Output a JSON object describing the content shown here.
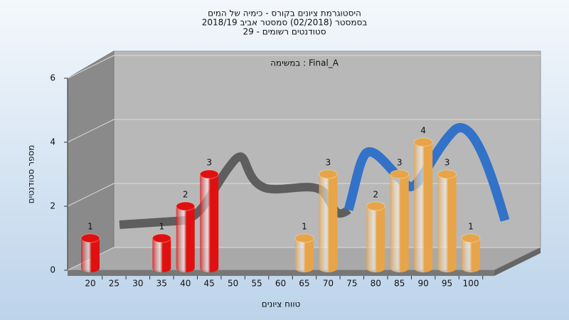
{
  "chart_data": {
    "type": "bar",
    "title": [
      "היסטוגרמת ציונים בקורס - כימיה של המים",
      "בסמסטר  (02/2018)  סמסטר אביב 2018/19",
      "סטודנטים רשומים - 29"
    ],
    "annotation": "במשימה : Final_A",
    "xlabel": "טווח ציונים",
    "ylabel": "מספר סטודנטים",
    "categories": [
      "20",
      "25",
      "30",
      "35",
      "40",
      "45",
      "50",
      "55",
      "60",
      "65",
      "70",
      "75",
      "80",
      "85",
      "90",
      "95",
      "100"
    ],
    "values": [
      1,
      0,
      0,
      1,
      2,
      3,
      0,
      0,
      0,
      1,
      3,
      0,
      2,
      3,
      4,
      3,
      1
    ],
    "colors": [
      "#e01010",
      "#e01010",
      "#e01010",
      "#e01010",
      "#e01010",
      "#e01010",
      "#e01010",
      "#e8a448",
      "#e8a448",
      "#e8a448",
      "#e8a448",
      "#e8a448",
      "#e8a448",
      "#e8a448",
      "#e8a448",
      "#e8a448",
      "#e8a448"
    ],
    "ylim": [
      0,
      6
    ],
    "yticks": [
      0,
      2,
      4,
      6
    ],
    "grid": true
  }
}
